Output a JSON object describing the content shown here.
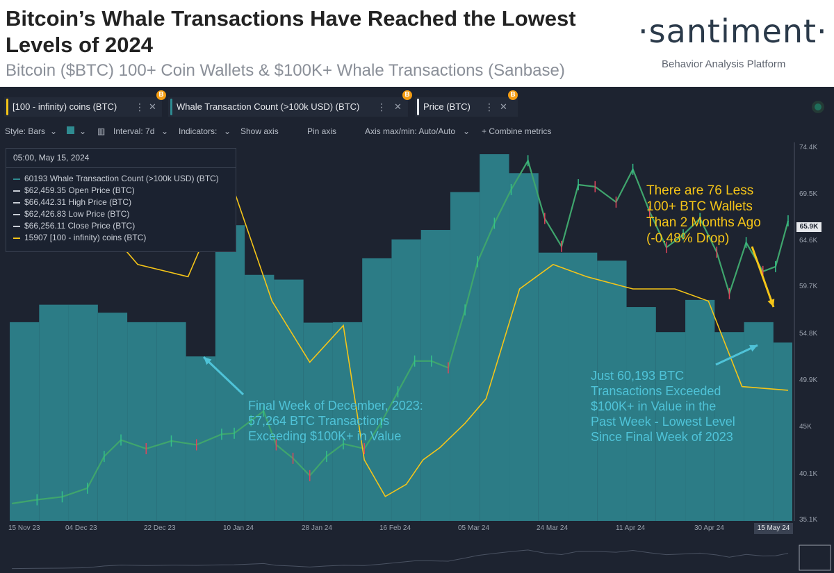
{
  "header": {
    "title": "Bitcoin’s Whale Transactions Have Reached the Lowest Levels of 2024",
    "subtitle": "Bitcoin ($BTC) 100+ Coin Wallets & $100K+ Whale Transactions (Sanbase)",
    "logo": "·santiment·",
    "logo_tagline": "Behavior Analysis Platform"
  },
  "metrics": [
    {
      "label": "[100 - infinity) coins (BTC)",
      "color": "#f5c518"
    },
    {
      "label": "Whale Transaction Count (>100k USD) (BTC)",
      "color": "#2f8b91"
    },
    {
      "label": "Price (BTC)",
      "color": "#e6e8ec"
    }
  ],
  "metric_menu_glyph": "⋮",
  "metric_close_glyph": "✕",
  "metric_asset_badge": "B",
  "toolbar": {
    "style": "Style: Bars",
    "interval": "Interval: 7d",
    "indicators": "Indicators:",
    "show_axis": "Show axis",
    "pin_axis": "Pin axis",
    "axis_maxmin": "Axis max/min: Auto/Auto",
    "combine": "+ Combine metrics"
  },
  "tooltip": {
    "date": "05:00, May 15, 2024",
    "rows": [
      {
        "value": "60193",
        "label": "Whale Transaction Count (>100k USD) (BTC)",
        "color": "#2f8b91"
      },
      {
        "value": "$62,459.35",
        "label": "Open Price (BTC)",
        "color": "#c9ced6"
      },
      {
        "value": "$66,442.31",
        "label": "High Price (BTC)",
        "color": "#c9ced6"
      },
      {
        "value": "$62,426.83",
        "label": "Low Price (BTC)",
        "color": "#c9ced6"
      },
      {
        "value": "$66,256.11",
        "label": "Close Price (BTC)",
        "color": "#c9ced6"
      },
      {
        "value": "15907",
        "label": "[100 - infinity) coins (BTC)",
        "color": "#f5c518"
      }
    ]
  },
  "annotations": {
    "left": "Final Week of December, 2023:\n57,264 BTC Transactions\nExceeding $100K+ in Value",
    "right": "Just 60,193 BTC\nTransactions Exceeded\n$100K+ in Value in the\nPast Week - Lowest Level\nSince Final Week of 2023",
    "gold": "There are 76 Less\n100+ BTC Wallets\nThan 2 Months Ago\n(-0.48% Drop)"
  },
  "chart_data": {
    "type": "bar",
    "title": "Bitcoin’s Whale Transactions Have Reached the Lowest Levels of 2024",
    "price_axis": {
      "ticks": [
        "74.4K",
        "69.5K",
        "64.6K",
        "59.7K",
        "54.8K",
        "49.9K",
        "45K",
        "40.1K",
        "35.1K"
      ],
      "ylim": [
        35100,
        74400
      ],
      "current_label": "65.9K"
    },
    "x_ticks": [
      "15 Nov 23",
      "04 Dec 23",
      "22 Dec 23",
      "10 Jan 24",
      "28 Jan 24",
      "16 Feb 24",
      "05 Mar 24",
      "24 Mar 24",
      "11 Apr 24",
      "30 Apr 24"
    ],
    "x_current_label": "15 May 24",
    "x_range": [
      "2023-11-10",
      "2024-05-16"
    ],
    "whale_bars": {
      "name": "Whale Transaction Count (>100k USD) (BTC)",
      "dates": [
        "2023-11-15",
        "2023-11-22",
        "2023-11-29",
        "2023-12-06",
        "2023-12-13",
        "2023-12-20",
        "2023-12-27",
        "2024-01-03",
        "2024-01-10",
        "2024-01-17",
        "2024-01-24",
        "2024-01-31",
        "2024-02-07",
        "2024-02-14",
        "2024-02-21",
        "2024-02-28",
        "2024-03-06",
        "2024-03-13",
        "2024-03-20",
        "2024-03-27",
        "2024-04-03",
        "2024-04-10",
        "2024-04-17",
        "2024-04-24",
        "2024-05-01",
        "2024-05-08",
        "2024-05-15"
      ],
      "values": [
        64500,
        68200,
        68200,
        66500,
        64500,
        64500,
        57264,
        85000,
        74500,
        73500,
        64400,
        64500,
        78000,
        82000,
        84000,
        92000,
        100000,
        96000,
        79200,
        79200,
        77500,
        67700,
        62400,
        69200,
        62400,
        64500,
        60193
      ],
      "ylim": [
        22500,
        102500
      ]
    },
    "price": {
      "name": "Price (BTC)",
      "dates": [
        "2023-11-12",
        "2023-11-18",
        "2023-11-24",
        "2023-11-30",
        "2023-12-04",
        "2023-12-08",
        "2023-12-14",
        "2023-12-20",
        "2023-12-26",
        "2024-01-01",
        "2024-01-04",
        "2024-01-08",
        "2024-01-11",
        "2024-01-14",
        "2024-01-18",
        "2024-01-22",
        "2024-01-26",
        "2024-01-30",
        "2024-02-04",
        "2024-02-08",
        "2024-02-12",
        "2024-02-16",
        "2024-02-20",
        "2024-02-24",
        "2024-02-28",
        "2024-03-02",
        "2024-03-06",
        "2024-03-10",
        "2024-03-14",
        "2024-03-18",
        "2024-03-22",
        "2024-03-26",
        "2024-03-30",
        "2024-04-04",
        "2024-04-08",
        "2024-04-12",
        "2024-04-16",
        "2024-04-20",
        "2024-04-24",
        "2024-04-28",
        "2024-05-01",
        "2024-05-05",
        "2024-05-09",
        "2024-05-12",
        "2024-05-15"
      ],
      "values": [
        36900,
        37300,
        37600,
        38500,
        41800,
        43500,
        42600,
        43400,
        43000,
        44100,
        44200,
        45500,
        46500,
        43000,
        41600,
        39800,
        41800,
        43100,
        42600,
        45300,
        48500,
        51700,
        51700,
        51000,
        57000,
        62000,
        66000,
        69500,
        72500,
        66500,
        63600,
        70000,
        69800,
        68200,
        71600,
        67200,
        63500,
        64800,
        66500,
        63000,
        58700,
        64000,
        61000,
        61500,
        66256
      ],
      "candle_ohlc_latest": {
        "open": 62459.35,
        "high": 66442.31,
        "low": 62426.83,
        "close": 66256.11
      }
    },
    "holders": {
      "name": "[100 - infinity) coins (BTC)",
      "dates": [
        "2023-11-12",
        "2023-11-22",
        "2023-12-02",
        "2023-12-12",
        "2023-12-24",
        "2024-01-03",
        "2024-01-08",
        "2024-01-13",
        "2024-01-22",
        "2024-01-30",
        "2024-02-04",
        "2024-02-09",
        "2024-02-14",
        "2024-02-18",
        "2024-02-22",
        "2024-02-28",
        "2024-03-04",
        "2024-03-12",
        "2024-03-20",
        "2024-03-28",
        "2024-04-08",
        "2024-04-18",
        "2024-04-26",
        "2024-05-04",
        "2024-05-15"
      ],
      "values": [
        16050,
        16070,
        16050,
        16010,
        16000,
        16080,
        16030,
        15980,
        15930,
        15960,
        15850,
        15820,
        15830,
        15850,
        15860,
        15880,
        15900,
        15990,
        16010,
        16000,
        15990,
        15990,
        15980,
        15910,
        15907
      ],
      "ylim": [
        15800,
        16110
      ]
    }
  }
}
